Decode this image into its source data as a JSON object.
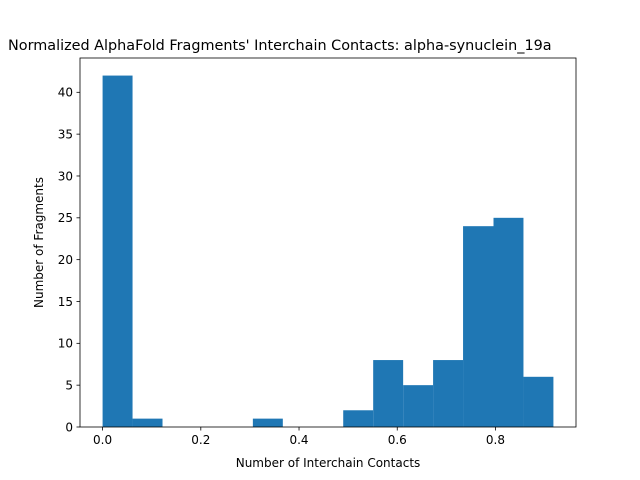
{
  "chart_data": {
    "type": "bar",
    "subtype": "histogram",
    "title": "Normalized AlphaFold Fragments' Interchain Contacts: alpha-synuclein_19a",
    "xlabel": "Number of Interchain Contacts",
    "ylabel": "Number of Fragments",
    "xlim": [
      -0.046,
      0.964
    ],
    "ylim": [
      0,
      44.1
    ],
    "xticks": [
      0.0,
      0.2,
      0.4,
      0.6,
      0.8
    ],
    "xtick_labels": [
      "0.0",
      "0.2",
      "0.4",
      "0.6",
      "0.8"
    ],
    "yticks": [
      0,
      5,
      10,
      15,
      20,
      25,
      30,
      35,
      40
    ],
    "ytick_labels": [
      "0",
      "5",
      "10",
      "15",
      "20",
      "25",
      "30",
      "35",
      "40"
    ],
    "bar_color": "#1f77b4",
    "grid": false,
    "bins": [
      {
        "start": 0.0,
        "end": 0.061,
        "count": 42
      },
      {
        "start": 0.061,
        "end": 0.122,
        "count": 1
      },
      {
        "start": 0.122,
        "end": 0.184,
        "count": 0
      },
      {
        "start": 0.184,
        "end": 0.245,
        "count": 0
      },
      {
        "start": 0.245,
        "end": 0.306,
        "count": 0
      },
      {
        "start": 0.306,
        "end": 0.367,
        "count": 1
      },
      {
        "start": 0.367,
        "end": 0.428,
        "count": 0
      },
      {
        "start": 0.428,
        "end": 0.49,
        "count": 0
      },
      {
        "start": 0.49,
        "end": 0.551,
        "count": 2
      },
      {
        "start": 0.551,
        "end": 0.612,
        "count": 8
      },
      {
        "start": 0.612,
        "end": 0.673,
        "count": 5
      },
      {
        "start": 0.673,
        "end": 0.734,
        "count": 8
      },
      {
        "start": 0.734,
        "end": 0.796,
        "count": 24
      },
      {
        "start": 0.796,
        "end": 0.857,
        "count": 25
      },
      {
        "start": 0.857,
        "end": 0.918,
        "count": 6
      }
    ]
  }
}
